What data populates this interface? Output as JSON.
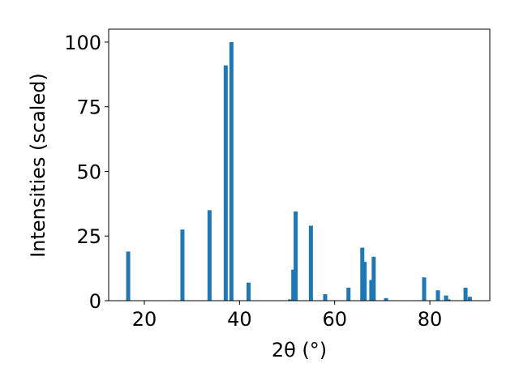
{
  "chart_data": {
    "type": "bar",
    "x_label": "2θ (°)",
    "y_label": "Intensities (scaled)",
    "x": [
      16.6,
      28.0,
      33.7,
      37.1,
      38.3,
      41.9,
      50.6,
      51.3,
      51.8,
      55.0,
      58.0,
      62.9,
      65.8,
      66.3,
      67.7,
      68.2,
      70.8,
      78.8,
      81.7,
      83.4,
      83.9,
      87.5,
      88.4
    ],
    "values": [
      19,
      27.5,
      35,
      91,
      100,
      7,
      0.5,
      12,
      34.5,
      29,
      2.5,
      5,
      20.5,
      15,
      8,
      17,
      1,
      9,
      4,
      2,
      0.5,
      5,
      1.5
    ],
    "color": "#1f77b4",
    "xlim": [
      12.5,
      92.6
    ],
    "xticks": [
      20,
      40,
      60,
      80
    ],
    "ylim": [
      0,
      105
    ],
    "yticks": [
      0,
      25,
      50,
      75,
      100
    ],
    "grid": false
  }
}
